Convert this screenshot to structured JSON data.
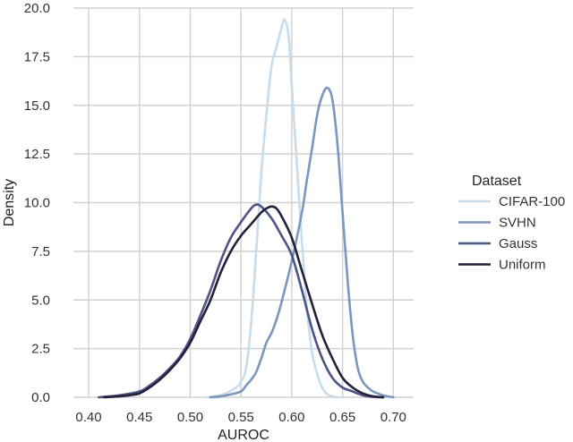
{
  "chart_data": {
    "type": "line",
    "title": "",
    "xlabel": "AUROC",
    "ylabel": "Density",
    "xlim": [
      0.385,
      0.72
    ],
    "ylim": [
      0,
      20
    ],
    "xticks": [
      "0.40",
      "0.45",
      "0.50",
      "0.55",
      "0.60",
      "0.65",
      "0.70"
    ],
    "yticks": [
      "0.0",
      "2.5",
      "5.0",
      "7.5",
      "10.0",
      "12.5",
      "15.0",
      "17.5",
      "20.0"
    ],
    "grid": true,
    "legend": {
      "title": "Dataset",
      "placement": "right"
    },
    "series": [
      {
        "name": "CIFAR-100",
        "color": "#c9dceb",
        "points": [
          [
            0.515,
            0
          ],
          [
            0.525,
            0.05
          ],
          [
            0.535,
            0.2
          ],
          [
            0.545,
            0.5
          ],
          [
            0.55,
            0.8
          ],
          [
            0.555,
            1.5
          ],
          [
            0.56,
            3.8
          ],
          [
            0.565,
            7.5
          ],
          [
            0.57,
            11.5
          ],
          [
            0.575,
            14.5
          ],
          [
            0.58,
            17.0
          ],
          [
            0.585,
            18.0
          ],
          [
            0.59,
            19.0
          ],
          [
            0.593,
            19.4
          ],
          [
            0.597,
            18.5
          ],
          [
            0.6,
            16.0
          ],
          [
            0.605,
            12.0
          ],
          [
            0.61,
            8.0
          ],
          [
            0.615,
            4.5
          ],
          [
            0.62,
            2.3
          ],
          [
            0.625,
            1.2
          ],
          [
            0.63,
            0.5
          ],
          [
            0.635,
            0.15
          ],
          [
            0.64,
            0.05
          ],
          [
            0.645,
            0
          ]
        ]
      },
      {
        "name": "SVHN",
        "color": "#7d96bd",
        "points": [
          [
            0.52,
            0
          ],
          [
            0.53,
            0.05
          ],
          [
            0.54,
            0.15
          ],
          [
            0.55,
            0.3
          ],
          [
            0.555,
            0.6
          ],
          [
            0.56,
            0.9
          ],
          [
            0.565,
            1.3
          ],
          [
            0.57,
            2.0
          ],
          [
            0.575,
            2.8
          ],
          [
            0.58,
            3.3
          ],
          [
            0.585,
            4.0
          ],
          [
            0.59,
            4.9
          ],
          [
            0.6,
            7.0
          ],
          [
            0.61,
            9.5
          ],
          [
            0.615,
            11.2
          ],
          [
            0.62,
            12.8
          ],
          [
            0.625,
            14.5
          ],
          [
            0.63,
            15.5
          ],
          [
            0.635,
            15.9
          ],
          [
            0.64,
            15.3
          ],
          [
            0.645,
            13.0
          ],
          [
            0.65,
            9.5
          ],
          [
            0.655,
            6.0
          ],
          [
            0.66,
            3.2
          ],
          [
            0.665,
            1.5
          ],
          [
            0.67,
            0.8
          ],
          [
            0.675,
            0.5
          ],
          [
            0.68,
            0.3
          ],
          [
            0.69,
            0.1
          ],
          [
            0.7,
            0
          ]
        ]
      },
      {
        "name": "Gauss",
        "color": "#4d5486",
        "points": [
          [
            0.41,
            0
          ],
          [
            0.43,
            0.1
          ],
          [
            0.45,
            0.3
          ],
          [
            0.46,
            0.6
          ],
          [
            0.47,
            1.0
          ],
          [
            0.48,
            1.5
          ],
          [
            0.49,
            2.1
          ],
          [
            0.5,
            3.0
          ],
          [
            0.51,
            4.2
          ],
          [
            0.52,
            5.5
          ],
          [
            0.53,
            7.0
          ],
          [
            0.54,
            8.2
          ],
          [
            0.55,
            9.0
          ],
          [
            0.56,
            9.7
          ],
          [
            0.565,
            9.9
          ],
          [
            0.57,
            9.8
          ],
          [
            0.58,
            9.2
          ],
          [
            0.59,
            8.3
          ],
          [
            0.6,
            7.3
          ],
          [
            0.61,
            5.5
          ],
          [
            0.62,
            3.5
          ],
          [
            0.63,
            2.0
          ],
          [
            0.64,
            1.0
          ],
          [
            0.65,
            0.5
          ],
          [
            0.66,
            0.3
          ],
          [
            0.67,
            0.1
          ],
          [
            0.68,
            0.02
          ],
          [
            0.69,
            0
          ]
        ]
      },
      {
        "name": "Uniform",
        "color": "#24203a",
        "points": [
          [
            0.415,
            0
          ],
          [
            0.43,
            0.05
          ],
          [
            0.44,
            0.1
          ],
          [
            0.45,
            0.2
          ],
          [
            0.46,
            0.5
          ],
          [
            0.47,
            0.9
          ],
          [
            0.48,
            1.4
          ],
          [
            0.49,
            2.0
          ],
          [
            0.5,
            2.8
          ],
          [
            0.51,
            3.9
          ],
          [
            0.52,
            5.0
          ],
          [
            0.53,
            6.4
          ],
          [
            0.54,
            7.5
          ],
          [
            0.55,
            8.3
          ],
          [
            0.56,
            8.9
          ],
          [
            0.57,
            9.5
          ],
          [
            0.575,
            9.7
          ],
          [
            0.58,
            9.8
          ],
          [
            0.585,
            9.7
          ],
          [
            0.59,
            9.3
          ],
          [
            0.6,
            8.2
          ],
          [
            0.61,
            6.5
          ],
          [
            0.62,
            4.8
          ],
          [
            0.63,
            3.2
          ],
          [
            0.64,
            2.0
          ],
          [
            0.65,
            1.0
          ],
          [
            0.66,
            0.5
          ],
          [
            0.67,
            0.2
          ],
          [
            0.68,
            0.05
          ],
          [
            0.69,
            0
          ]
        ]
      }
    ]
  }
}
